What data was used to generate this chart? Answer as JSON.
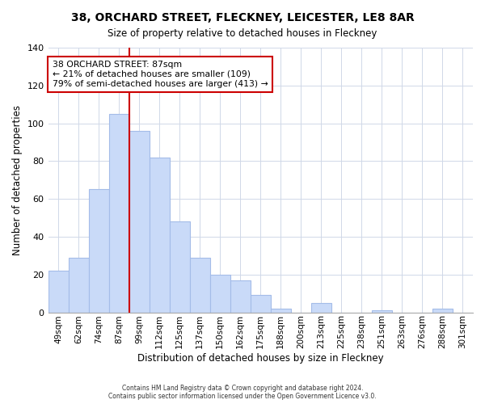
{
  "title": "38, ORCHARD STREET, FLECKNEY, LEICESTER, LE8 8AR",
  "subtitle": "Size of property relative to detached houses in Fleckney",
  "xlabel": "Distribution of detached houses by size in Fleckney",
  "ylabel": "Number of detached properties",
  "bar_labels": [
    "49sqm",
    "62sqm",
    "74sqm",
    "87sqm",
    "99sqm",
    "112sqm",
    "125sqm",
    "137sqm",
    "150sqm",
    "162sqm",
    "175sqm",
    "188sqm",
    "200sqm",
    "213sqm",
    "225sqm",
    "238sqm",
    "251sqm",
    "263sqm",
    "276sqm",
    "288sqm",
    "301sqm"
  ],
  "bar_heights": [
    22,
    29,
    65,
    105,
    96,
    82,
    48,
    29,
    20,
    17,
    9,
    2,
    0,
    5,
    0,
    0,
    1,
    0,
    0,
    2,
    0
  ],
  "bar_color": "#c9daf8",
  "bar_edge_color": "#a4bce8",
  "vline_index": 3,
  "vline_color": "#cc0000",
  "ylim": [
    0,
    140
  ],
  "yticks": [
    0,
    20,
    40,
    60,
    80,
    100,
    120,
    140
  ],
  "annotation_line1": "38 ORCHARD STREET: 87sqm",
  "annotation_line2": "← 21% of detached houses are smaller (109)",
  "annotation_line3": "79% of semi-detached houses are larger (413) →",
  "annotation_box_edge": "#cc0000",
  "footer_line1": "Contains HM Land Registry data © Crown copyright and database right 2024.",
  "footer_line2": "Contains public sector information licensed under the Open Government Licence v3.0."
}
